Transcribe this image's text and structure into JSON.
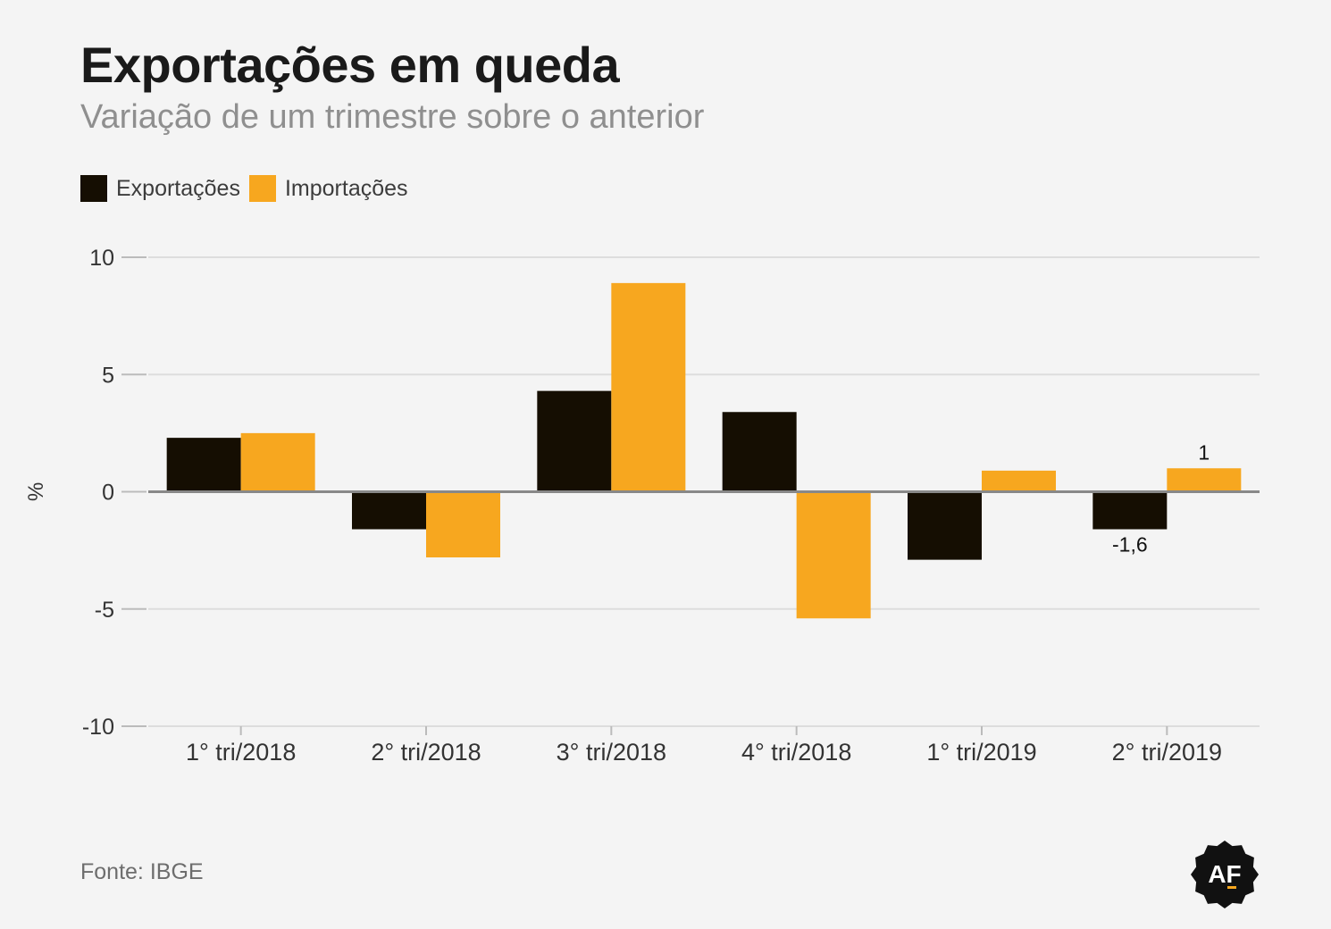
{
  "colors": {
    "exportacoes": "#150e02",
    "importacoes": "#f7a71f",
    "grid": "#dddddd",
    "zero_line": "#888888",
    "tick_text": "#333333"
  },
  "chart_data": {
    "type": "bar",
    "title": "Exportações em queda",
    "subtitle": "Variação de um trimestre sobre o anterior",
    "ylabel": "%",
    "xlabel": "",
    "ylim": [
      -10,
      10
    ],
    "yticks": [
      10,
      5,
      0,
      -5,
      -10
    ],
    "grid": true,
    "legend_position": "top-left",
    "categories": [
      "1° tri/2018",
      "2° tri/2018",
      "3° tri/2018",
      "4° tri/2018",
      "1° tri/2019",
      "2° tri/2019"
    ],
    "series": [
      {
        "name": "Exportações",
        "color_key": "exportacoes",
        "values": [
          2.3,
          -1.6,
          4.3,
          3.4,
          -2.9,
          -1.6
        ]
      },
      {
        "name": "Importações",
        "color_key": "importacoes",
        "values": [
          2.5,
          -2.8,
          8.9,
          -5.4,
          0.9,
          1.0
        ]
      }
    ],
    "data_labels": [
      {
        "series": 0,
        "index": 5,
        "text": "-1,6"
      },
      {
        "series": 1,
        "index": 5,
        "text": "1"
      }
    ]
  },
  "source": "Fonte: IBGE",
  "logo": {
    "text": "AF"
  }
}
